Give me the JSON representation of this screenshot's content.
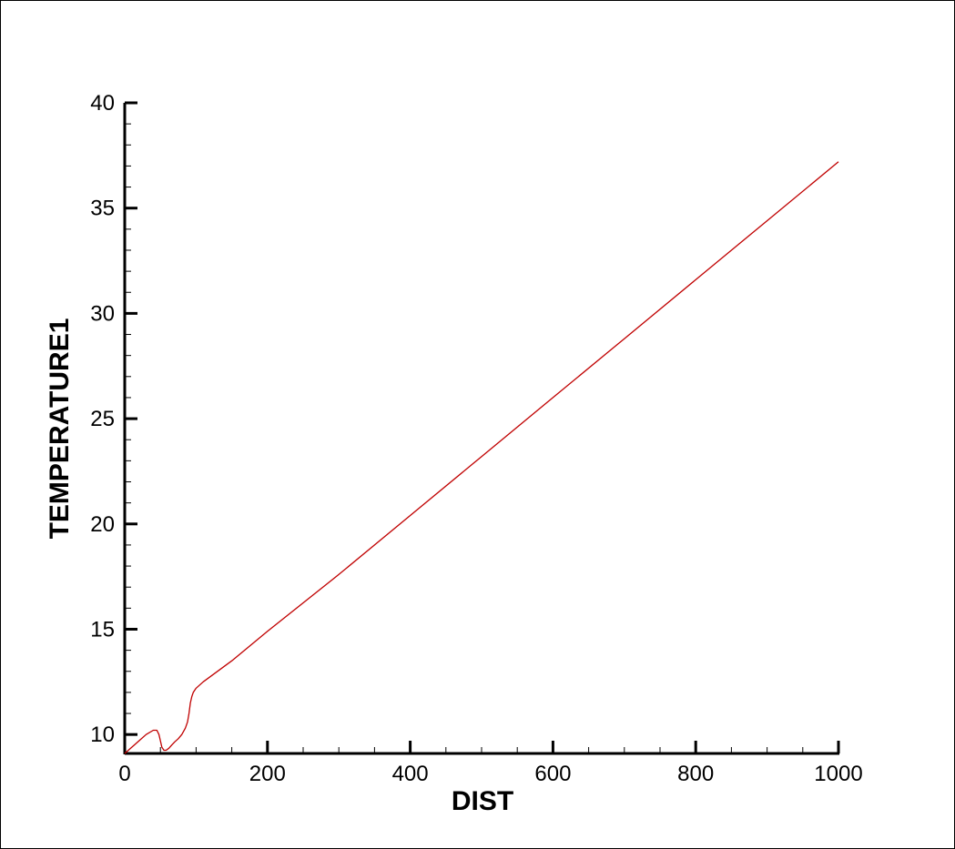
{
  "chart_data": {
    "type": "line",
    "title": "",
    "xlabel": "DIST",
    "ylabel": "TEMPERATURE1",
    "xlim": [
      0,
      1000
    ],
    "ylim": [
      9.1,
      40
    ],
    "xticks": [
      0,
      200,
      400,
      600,
      800,
      1000
    ],
    "yticks": [
      10,
      15,
      20,
      25,
      30,
      35,
      40
    ],
    "x_minor_step": 50,
    "y_minor_step": 1,
    "grid": false,
    "line_color": "#c00000",
    "series": [
      {
        "x": [
          0,
          10,
          20,
          30,
          40,
          45,
          48,
          50,
          52,
          55,
          58,
          62,
          66,
          70,
          75,
          80,
          85,
          88,
          90,
          92,
          94,
          96,
          98,
          100,
          105,
          110,
          150,
          200,
          300,
          400,
          500,
          600,
          700,
          800,
          900,
          1000
        ],
        "y": [
          9.1,
          9.4,
          9.7,
          10.0,
          10.2,
          10.2,
          10.0,
          9.7,
          9.4,
          9.25,
          9.25,
          9.35,
          9.5,
          9.65,
          9.8,
          10.0,
          10.3,
          10.6,
          11.0,
          11.5,
          11.8,
          12.0,
          12.1,
          12.2,
          12.35,
          12.5,
          13.5,
          14.9,
          17.6,
          20.4,
          23.2,
          26.0,
          28.8,
          31.6,
          34.4,
          37.2
        ]
      }
    ]
  }
}
